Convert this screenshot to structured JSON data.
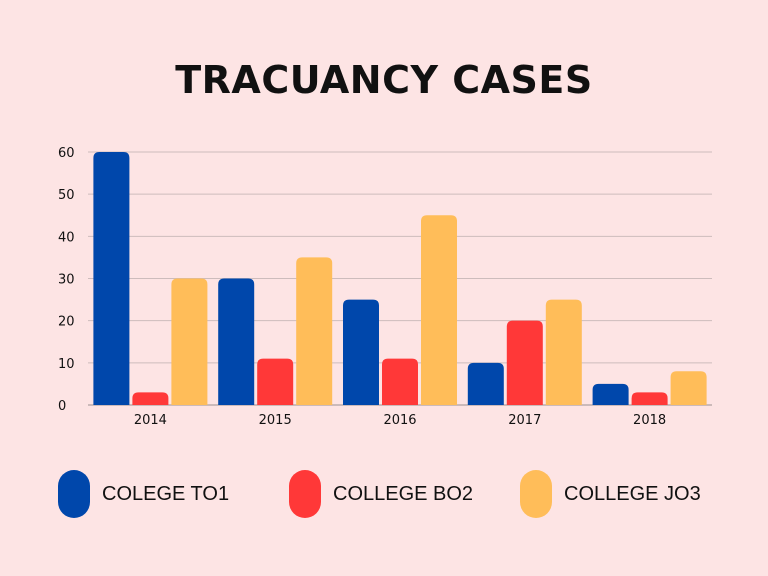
{
  "chart_data": {
    "type": "bar",
    "title": "TRACUANCY CASES",
    "categories": [
      "2014",
      "2015",
      "2016",
      "2017",
      "2018"
    ],
    "series": [
      {
        "name": "COLEGE TO1",
        "color": "#0047ab",
        "values": [
          60,
          30,
          25,
          10,
          5
        ]
      },
      {
        "name": "COLLEGE BO2",
        "color": "#ff3838",
        "values": [
          3,
          11,
          11,
          20,
          3
        ]
      },
      {
        "name": "COLLEGE JO3",
        "color": "#ffbd59",
        "values": [
          30,
          35,
          45,
          25,
          8
        ]
      }
    ],
    "ylim": [
      0,
      60
    ],
    "yticks": [
      0,
      10,
      20,
      30,
      40,
      50,
      60
    ],
    "xlabel": "",
    "ylabel": "",
    "grid": true,
    "legend_position": "bottom"
  }
}
